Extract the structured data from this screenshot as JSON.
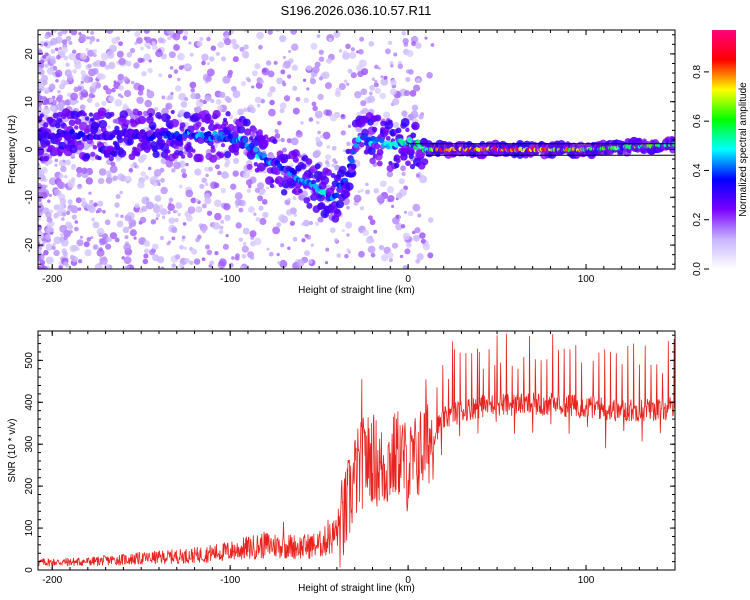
{
  "title": "S196.2026.036.10.57.R11",
  "chart_data": [
    {
      "type": "heatmap",
      "name": "spectrogram",
      "xlabel": "Height of straight line (km)",
      "ylabel": "Frequency (Hz)",
      "xlim": [
        -208,
        150
      ],
      "ylim": [
        -25,
        25
      ],
      "xticks": [
        -200,
        -100,
        0,
        100
      ],
      "yticks": [
        -20,
        -10,
        0,
        10,
        20
      ],
      "grid": false,
      "colorbar": {
        "label": "Normalized spectral amplitude",
        "range": [
          0.0,
          0.97
        ],
        "ticks": [
          0.0,
          0.2,
          0.4,
          0.6,
          0.8
        ],
        "colors": [
          "#ffffff",
          "#c8b4ff",
          "#7a00ff",
          "#0000ff",
          "#00ffff",
          "#00ff00",
          "#ffff00",
          "#ff0000",
          "#ff0080"
        ]
      },
      "ridge": {
        "x": [
          -205,
          -180,
          -160,
          -140,
          -120,
          -100,
          -90,
          -80,
          -70,
          -60,
          -50,
          -42,
          -35,
          -28,
          -20,
          -10,
          0,
          10,
          20,
          40,
          60,
          80,
          100,
          120,
          150
        ],
        "freq_hz": [
          3,
          3,
          3,
          3,
          3,
          2.5,
          1,
          -2,
          -4,
          -6,
          -8,
          -10,
          -6,
          2,
          2,
          1,
          1.5,
          0,
          0,
          0,
          0,
          0,
          0,
          0.5,
          1
        ],
        "amplitude": [
          0.3,
          0.35,
          0.3,
          0.35,
          0.45,
          0.45,
          0.5,
          0.45,
          0.4,
          0.45,
          0.5,
          0.45,
          0.4,
          0.45,
          0.5,
          0.55,
          0.55,
          0.6,
          0.9,
          0.9,
          0.85,
          0.85,
          0.7,
          0.65,
          0.6
        ]
      }
    },
    {
      "type": "line",
      "name": "snr",
      "xlabel": "Height of straight line (km)",
      "ylabel": "SNR (10 * v/v)",
      "xlim": [
        -208,
        150
      ],
      "ylim": [
        0,
        570
      ],
      "xticks": [
        -200,
        -100,
        0,
        100
      ],
      "yticks": [
        0,
        100,
        200,
        300,
        400,
        500
      ],
      "grid": false,
      "series": [
        {
          "name": "SNR",
          "color": "#e8231e",
          "envelope_x": [
            -208,
            -180,
            -160,
            -140,
            -120,
            -100,
            -80,
            -60,
            -50,
            -42,
            -36,
            -30,
            -25,
            -20,
            -15,
            -10,
            -5,
            0,
            5,
            10,
            15,
            20,
            30,
            40,
            50,
            60,
            80,
            100,
            120,
            150
          ],
          "envelope_y": [
            18,
            20,
            25,
            30,
            35,
            45,
            60,
            55,
            60,
            80,
            120,
            220,
            260,
            270,
            240,
            260,
            280,
            240,
            270,
            300,
            330,
            360,
            380,
            390,
            395,
            395,
            395,
            390,
            380,
            385
          ],
          "spike_x": [
            -70,
            -45,
            -36,
            -26,
            -24,
            10,
            25,
            40,
            50
          ],
          "spike_y": [
            115,
            120,
            190,
            455,
            330,
            455,
            545,
            520,
            560
          ]
        }
      ]
    }
  ]
}
